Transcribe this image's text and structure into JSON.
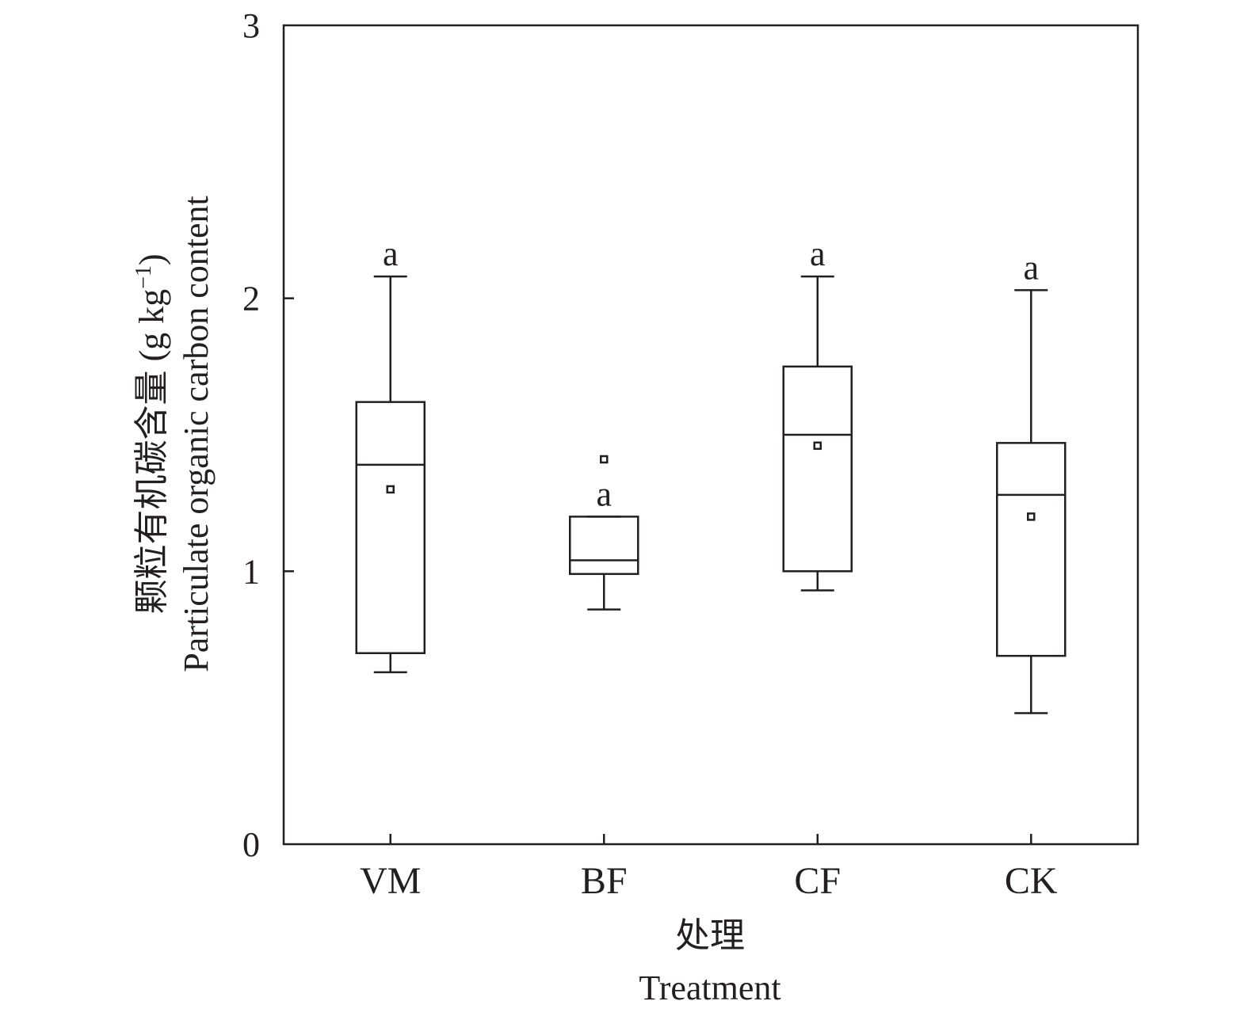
{
  "chart_data": {
    "type": "box",
    "title": "",
    "xlabel_cn": "处理",
    "xlabel_en": "Treatment",
    "ylabel_cn": "颗粒有机碳含量 (g kg",
    "ylabel_sup": "−1",
    "ylabel_close": ")",
    "ylabel_en": "Particulate organic carbon content",
    "ylim": [
      0,
      3
    ],
    "yticks": [
      "0",
      "1",
      "2",
      "3"
    ],
    "categories": [
      "VM",
      "BF",
      "CF",
      "CK"
    ],
    "boxes": [
      {
        "whisker_low": 0.63,
        "q1": 0.7,
        "median": 1.39,
        "q3": 1.62,
        "whisker_high": 2.08,
        "mean": 1.3,
        "outliers": [],
        "sig": "a"
      },
      {
        "whisker_low": 0.86,
        "q1": 0.99,
        "median": 1.04,
        "q3": 1.2,
        "whisker_high": 1.2,
        "mean": null,
        "outliers": [
          1.41
        ],
        "sig": "a"
      },
      {
        "whisker_low": 0.93,
        "q1": 1.0,
        "median": 1.5,
        "q3": 1.75,
        "whisker_high": 2.08,
        "mean": 1.46,
        "outliers": [],
        "sig": "a"
      },
      {
        "whisker_low": 0.48,
        "q1": 0.69,
        "median": 1.28,
        "q3": 1.47,
        "whisker_high": 2.03,
        "mean": 1.2,
        "outliers": [],
        "sig": "a"
      }
    ],
    "grid": false,
    "legend": "none"
  }
}
